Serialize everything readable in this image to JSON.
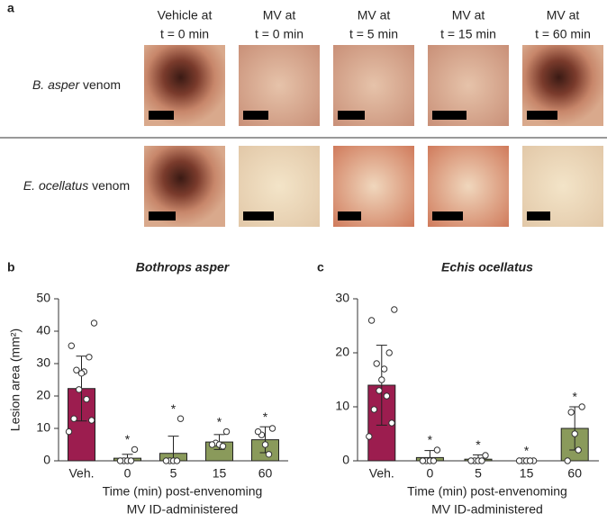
{
  "panel_labels": [
    "a",
    "b",
    "c"
  ],
  "photo_panel": {
    "columns": [
      [
        "Vehicle at",
        "t = 0 min"
      ],
      [
        "MV at",
        "t = 0 min"
      ],
      [
        "MV at",
        "t = 5 min"
      ],
      [
        "MV at",
        "t = 15 min"
      ],
      [
        "MV at",
        "t = 60 min"
      ]
    ],
    "rows": [
      {
        "species": "B. asper",
        "suffix": " venom"
      },
      {
        "species": "E. ocellatus",
        "suffix": " venom"
      }
    ]
  },
  "chart_data": [
    {
      "type": "bar",
      "title": "Bothrops asper",
      "ylabel": "Lesion area (mm²)",
      "xlabel": [
        "Time (min) post-envenoming",
        "MV ID-administered"
      ],
      "categories": [
        "Veh.",
        "0",
        "5",
        "15",
        "60"
      ],
      "values": [
        22.3,
        0.8,
        2.3,
        5.8,
        6.5
      ],
      "errors": [
        10,
        1.2,
        5.3,
        2.3,
        4
      ],
      "colors": [
        "#9c1d4f",
        "#8a9a5b",
        "#8a9a5b",
        "#8a9a5b",
        "#8a9a5b"
      ],
      "points": [
        [
          42.5,
          35.5,
          32,
          28,
          27.5,
          27,
          22,
          19,
          13,
          12.5,
          9
        ],
        [
          3.5,
          0,
          0,
          0,
          0
        ],
        [
          13,
          0,
          0,
          0,
          0
        ],
        [
          9,
          5.5,
          5,
          4.5,
          5
        ],
        [
          10,
          8,
          5,
          2,
          9
        ]
      ],
      "significance": [
        null,
        "*",
        "*",
        "*",
        "*"
      ],
      "ylim": [
        0,
        50
      ],
      "yticks": [
        0,
        10,
        20,
        30,
        40,
        50
      ]
    },
    {
      "type": "bar",
      "title": "Echis ocellatus",
      "xlabel": [
        "Time (min) post-envenoming",
        "MV ID-administered"
      ],
      "categories": [
        "Veh.",
        "0",
        "5",
        "15",
        "60"
      ],
      "values": [
        14,
        0.6,
        0.3,
        0,
        6
      ],
      "errors": [
        7.4,
        1.3,
        0.8,
        0,
        4
      ],
      "colors": [
        "#9c1d4f",
        "#8a9a5b",
        "#8a9a5b",
        "#8a9a5b",
        "#8a9a5b"
      ],
      "points": [
        [
          28,
          26,
          20,
          18,
          17,
          15,
          13,
          12,
          9.5,
          7,
          4.5
        ],
        [
          2,
          0,
          0,
          0,
          0
        ],
        [
          1,
          0,
          0,
          0,
          0
        ],
        [
          0,
          0,
          0,
          0,
          0
        ],
        [
          10,
          9,
          5,
          2,
          0
        ]
      ],
      "significance": [
        null,
        "*",
        "*",
        "*",
        "*"
      ],
      "ylim": [
        0,
        30
      ],
      "yticks": [
        0,
        10,
        20,
        30
      ]
    }
  ]
}
